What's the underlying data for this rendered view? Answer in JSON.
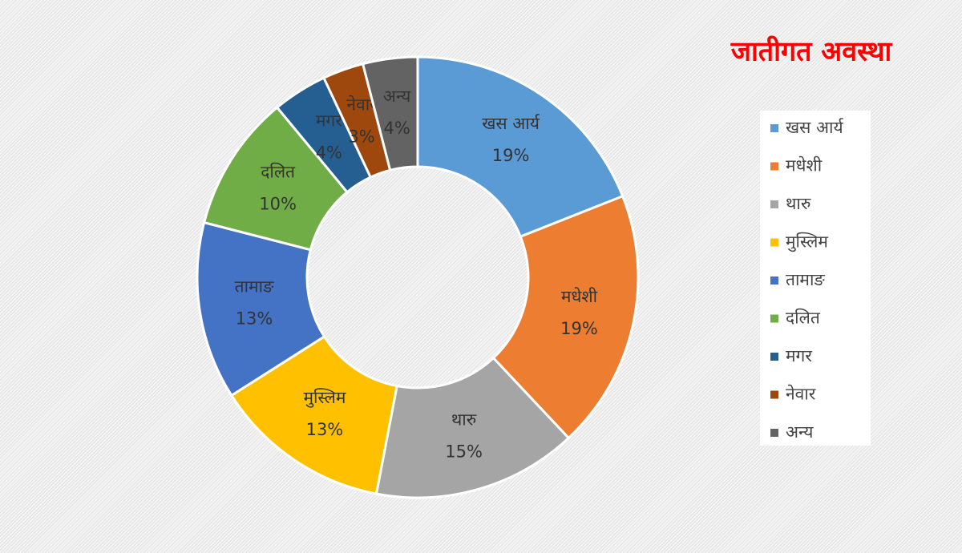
{
  "chart_data": {
    "type": "donut",
    "title": "जातीगत अवस्था",
    "categories": [
      "खस आर्य",
      "मधेशी",
      "थारु",
      "मुस्लिम",
      "तामाङ",
      "दलित",
      "मगर",
      "नेवार",
      "अन्य"
    ],
    "values": [
      19,
      19,
      15,
      13,
      13,
      10,
      4,
      3,
      4
    ],
    "value_labels": [
      "19%",
      "19%",
      "15%",
      "13%",
      "13%",
      "10%",
      "4%",
      "3%",
      "4%"
    ],
    "colors": [
      "#5b9bd5",
      "#ed7d31",
      "#a5a5a5",
      "#ffc000",
      "#4472c4",
      "#70ad47",
      "#255e91",
      "#9e480e",
      "#636363"
    ],
    "legend": "right"
  }
}
